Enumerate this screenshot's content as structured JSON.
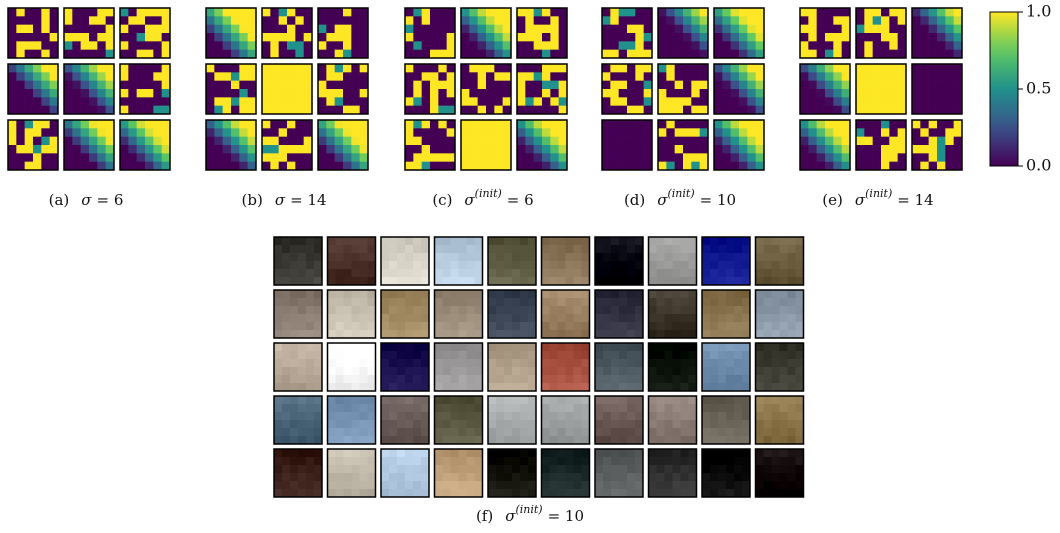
{
  "panels": [
    {
      "label": "(a)",
      "symbol": "σ",
      "relation": "= 6"
    },
    {
      "label": "(b)",
      "symbol": "σ",
      "relation": "= 14"
    },
    {
      "label": "(c)",
      "symbol": "σ",
      "sup": "(init)",
      "relation": "= 6"
    },
    {
      "label": "(d)",
      "symbol": "σ",
      "sup": "(init)",
      "relation": "= 10"
    },
    {
      "label": "(e)",
      "symbol": "σ",
      "sup": "(init)",
      "relation": "= 14"
    }
  ],
  "bottom_panel": {
    "label": "(f)",
    "symbol": "σ",
    "sup": "(init)",
    "relation": "= 10"
  },
  "colorbar": {
    "lim": [
      0,
      1
    ],
    "ticks": [
      {
        "value": 0,
        "label": "0.0"
      },
      0.5,
      {
        "value": 1,
        "label": "1.0"
      }
    ]
  }
}
